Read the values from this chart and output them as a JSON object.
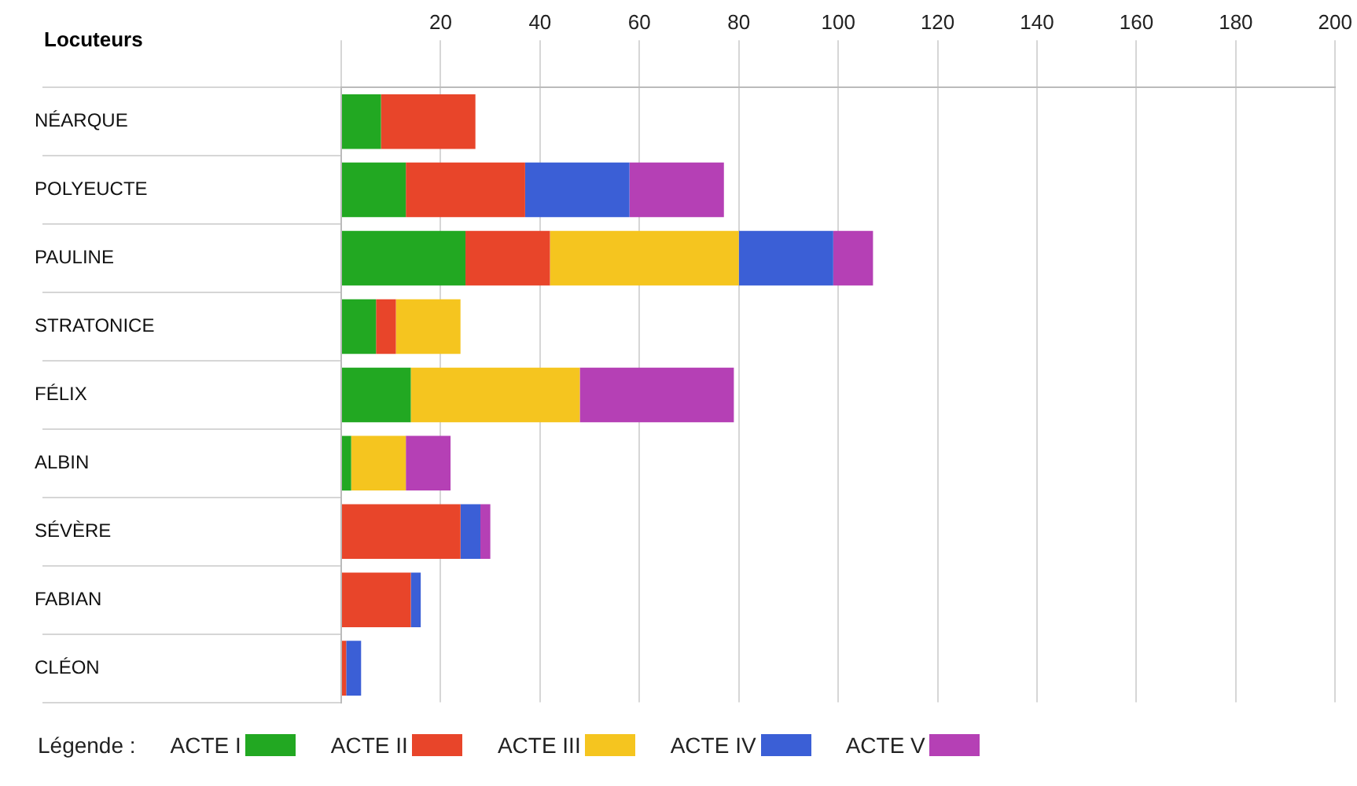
{
  "chart_data": {
    "type": "bar",
    "orientation": "horizontal",
    "stacked": true,
    "ylabel": "Locuteurs",
    "legend_title": "Légende :",
    "legend": "bottom",
    "grid": "x",
    "categories": [
      "NÉARQUE",
      "POLYEUCTE",
      "PAULINE",
      "STRATONICE",
      "FÉLIX",
      "ALBIN",
      "SÉVÈRE",
      "FABIAN",
      "CLÉON"
    ],
    "xlim": [
      0,
      200
    ],
    "xticks": [
      {
        "value": 0,
        "label": null
      },
      20,
      40,
      60,
      80,
      100,
      120,
      140,
      160,
      180,
      200
    ],
    "series": [
      {
        "name": "ACTE I",
        "color": "#22a822",
        "values": [
          8,
          13,
          25,
          7,
          14,
          2,
          null,
          null,
          null
        ]
      },
      {
        "name": "ACTE II",
        "color": "#e8452a",
        "values": [
          19,
          24,
          17,
          4,
          null,
          null,
          24,
          14,
          1
        ]
      },
      {
        "name": "ACTE III",
        "color": "#f5c51f",
        "values": [
          null,
          null,
          38,
          13,
          34,
          11,
          null,
          null,
          null
        ]
      },
      {
        "name": "ACTE IV",
        "color": "#3b5fd6",
        "values": [
          null,
          21,
          19,
          null,
          null,
          null,
          4,
          2,
          3
        ]
      },
      {
        "name": "ACTE V",
        "color": "#b540b5",
        "values": [
          null,
          19,
          8,
          null,
          31,
          9,
          2,
          null,
          null
        ]
      }
    ]
  }
}
